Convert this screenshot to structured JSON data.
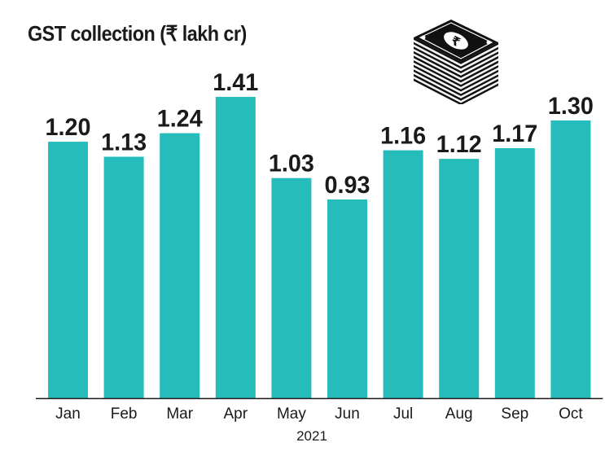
{
  "chart_data": {
    "type": "bar",
    "title": "GST collection (₹ lakh cr)",
    "categories": [
      "Jan",
      "Feb",
      "Mar",
      "Apr",
      "May",
      "Jun",
      "Jul",
      "Aug",
      "Sep",
      "Oct"
    ],
    "values": [
      1.2,
      1.13,
      1.24,
      1.41,
      1.03,
      0.93,
      1.16,
      1.12,
      1.17,
      1.3
    ],
    "value_labels": [
      "1.20",
      "1.13",
      "1.24",
      "1.41",
      "1.03",
      "0.93",
      "1.16",
      "1.12",
      "1.17",
      "1.30"
    ],
    "xlabel": "2021",
    "ylabel": "",
    "ylim": [
      0,
      1.41
    ],
    "grid": false,
    "bar_color": "#26bcbc",
    "icon": "rupee-banknote-stack-icon"
  }
}
